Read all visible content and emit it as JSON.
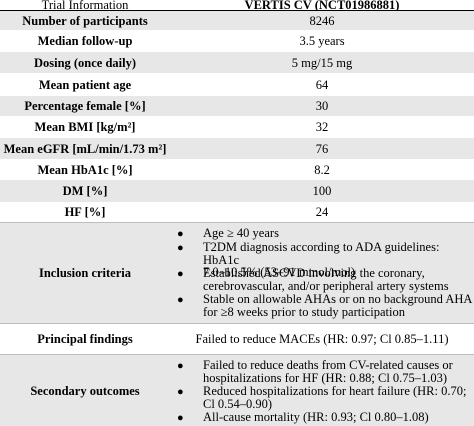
{
  "header": {
    "left": "Trial Information",
    "right": "VERTIS CV (NCT01986881)"
  },
  "rows": [
    {
      "label": "Number of participants",
      "value": "8246"
    },
    {
      "label": "Median follow-up",
      "value": "3.5 years"
    },
    {
      "label": "Dosing (once daily)",
      "value": "5 mg/15 mg"
    },
    {
      "label": "Mean patient age",
      "value": "64"
    },
    {
      "label": "Percentage female [%]",
      "value": "30"
    },
    {
      "label": "Mean BMI [kg/m²]",
      "value": "32"
    },
    {
      "label": "Mean eGFR [mL/min/1.73 m²]",
      "value": "76"
    },
    {
      "label": "Mean HbA1c [%]",
      "value": "8.2"
    },
    {
      "label": "DM [%]",
      "value": "100"
    },
    {
      "label": "HF [%]",
      "value": "24"
    }
  ],
  "inclusion": {
    "label": "Inclusion criteria",
    "items": [
      "Age ≥ 40 years",
      "T2DM diagnosis according to ADA guidelines: HbA1c\n7.0–10.5% (53–91 mmol/mol)",
      "Established ASCVD involving the coronary,\ncerebrovascular, and/or peripheral artery systems",
      "Stable on allowable AHAs or on no background AHA\nfor ≥8 weeks prior to study participation"
    ]
  },
  "principal": {
    "label": "Principal findings",
    "value": "Failed to reduce MACEs (HR: 0.97; Cl 0.85–1.11)"
  },
  "secondary": {
    "label": "Secondary outcomes",
    "items": [
      "Failed to reduce deaths from CV-related causes or\nhospitalizations for HF (HR: 0.88; Cl 0.75–1.03)",
      "Reduced hospitalizations for heart failure (HR: 0.70;\nCl 0.54–0.90)",
      "All-cause mortality (HR: 0.93; Cl 0.80–1.08)"
    ]
  }
}
